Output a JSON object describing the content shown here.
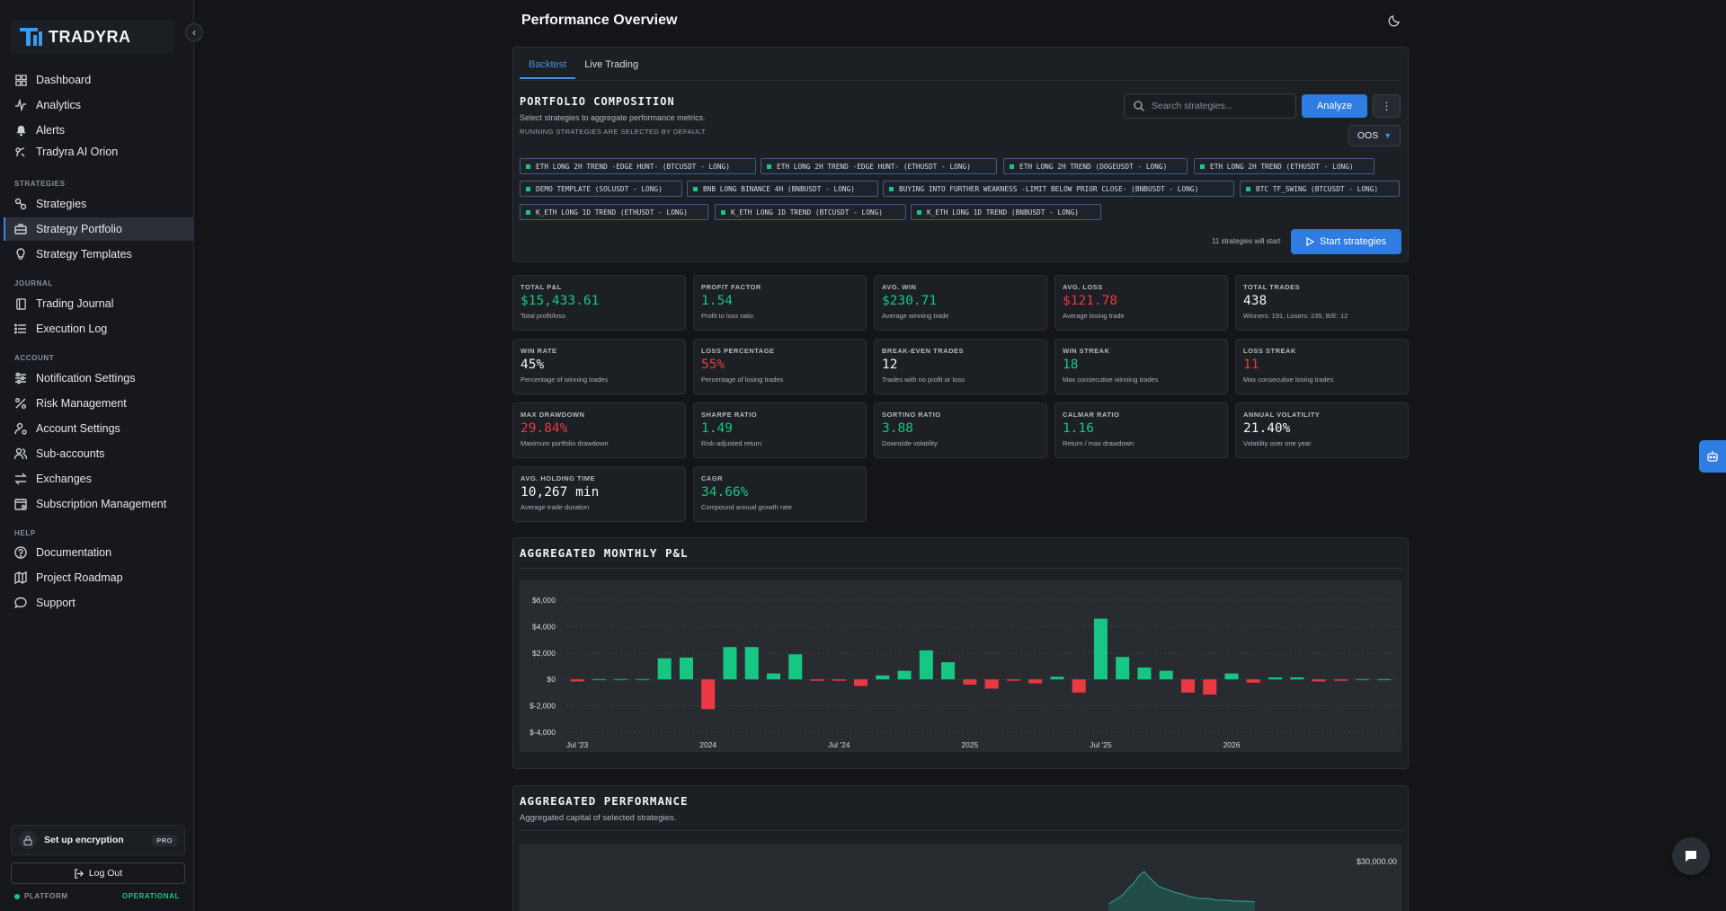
{
  "brand": {
    "name": "TRADYRA"
  },
  "sidebar": {
    "top_items": [
      {
        "label": "Dashboard",
        "icon": "grid-icon"
      },
      {
        "label": "Analytics",
        "icon": "activity-icon"
      },
      {
        "label": "Alerts",
        "icon": "bell-icon"
      },
      {
        "label": "Tradyra AI Orion",
        "icon": "ai-icon"
      }
    ],
    "sections": {
      "strategies": "STRATEGIES",
      "journal": "JOURNAL",
      "account": "ACCOUNT",
      "help": "HELP"
    },
    "strategies_items": [
      {
        "label": "Strategies",
        "icon": "nodes-icon"
      },
      {
        "label": "Strategy Portfolio",
        "icon": "briefcase-icon"
      },
      {
        "label": "Strategy Templates",
        "icon": "lightbulb-icon"
      }
    ],
    "journal_items": [
      {
        "label": "Trading Journal",
        "icon": "book-icon"
      },
      {
        "label": "Execution Log",
        "icon": "list-icon"
      }
    ],
    "account_items": [
      {
        "label": "Notification Settings",
        "icon": "sliders-icon"
      },
      {
        "label": "Risk Management",
        "icon": "percent-icon"
      },
      {
        "label": "Account Settings",
        "icon": "user-gear-icon"
      },
      {
        "label": "Sub-accounts",
        "icon": "users-icon"
      },
      {
        "label": "Exchanges",
        "icon": "swap-icon"
      },
      {
        "label": "Subscription Management",
        "icon": "calendar-icon"
      }
    ],
    "help_items": [
      {
        "label": "Documentation",
        "icon": "help-circle-icon"
      },
      {
        "label": "Project Roadmap",
        "icon": "map-icon"
      },
      {
        "label": "Support",
        "icon": "message-icon"
      }
    ],
    "encryption": {
      "label": "Set up encryption",
      "badge": "PRO"
    },
    "logout": "Log Out",
    "status": {
      "platform": "PLATFORM",
      "state": "OPERATIONAL"
    }
  },
  "header": {
    "title": "Performance Overview"
  },
  "tabs": [
    "Backtest",
    "Live Trading"
  ],
  "composition": {
    "title": "PORTFOLIO COMPOSITION",
    "subtitle": "Select strategies to aggregate performance metrics.",
    "note": "RUNNING STRATEGIES ARE SELECTED BY DEFAULT.",
    "search_placeholder": "Search strategies...",
    "analyze": "Analyze",
    "sample": "OOS",
    "chips": [
      "ETH LONG 2H TREND -EDGE HUNT- (BTCUSDT - LONG)",
      "ETH LONG 2H TREND -EDGE HUNT- (ETHUSDT - LONG)",
      "ETH LONG 2H TREND (DOGEUSDT - LONG)",
      "ETH LONG 2H TREND (ETHUSDT - LONG)",
      "DEMO TEMPLATE (SOLUSDT - LONG)",
      "BNB LONG BINANCE 4H (BNBUSDT - LONG)",
      "BUYING INTO FURTHER WEAKNESS -LIMIT BELOW PRIOR CLOSE- (BNBUSDT - LONG)",
      "BTC TF_SWING (BTCUSDT - LONG)",
      "K_ETH LONG 1D TREND (ETHUSDT - LONG)",
      "K_ETH LONG 1D TREND (BTCUSDT - LONG)",
      "K_ETH LONG 1D TREND (BNBUSDT - LONG)"
    ],
    "will_start": "11 strategies will start",
    "start_button": "Start strategies"
  },
  "metrics": [
    {
      "label": "TOTAL P&L",
      "value": "$15,433.61",
      "desc": "Total profit/loss",
      "tone": "pos"
    },
    {
      "label": "PROFIT FACTOR",
      "value": "1.54",
      "desc": "Profit to loss ratio",
      "tone": "pos"
    },
    {
      "label": "AVG. WIN",
      "value": "$230.71",
      "desc": "Average winning trade",
      "tone": "pos"
    },
    {
      "label": "AVG. LOSS",
      "value": "$121.78",
      "desc": "Average losing trade",
      "tone": "neg"
    },
    {
      "label": "TOTAL TRADES",
      "value": "438",
      "desc": "Winners: 191, Losers: 235, B/E: 12",
      "tone": ""
    },
    {
      "label": "WIN RATE",
      "value": "45%",
      "desc": "Percentage of winning trades",
      "tone": ""
    },
    {
      "label": "LOSS PERCENTAGE",
      "value": "55%",
      "desc": "Percentage of losing trades",
      "tone": "neg"
    },
    {
      "label": "BREAK-EVEN TRADES",
      "value": "12",
      "desc": "Trades with no profit or loss",
      "tone": ""
    },
    {
      "label": "WIN STREAK",
      "value": "18",
      "desc": "Max consecutive winning trades",
      "tone": "pos"
    },
    {
      "label": "LOSS STREAK",
      "value": "11",
      "desc": "Max consecutive losing trades",
      "tone": "neg"
    },
    {
      "label": "MAX DRAWDOWN",
      "value": "29.84%",
      "desc": "Maximum portfolio drawdown",
      "tone": "neg"
    },
    {
      "label": "SHARPE RATIO",
      "value": "1.49",
      "desc": "Risk-adjusted return",
      "tone": "pos"
    },
    {
      "label": "SORTINO RATIO",
      "value": "3.88",
      "desc": "Downside volatility",
      "tone": "pos"
    },
    {
      "label": "CALMAR RATIO",
      "value": "1.16",
      "desc": "Return / max drawdown",
      "tone": "pos"
    },
    {
      "label": "ANNUAL VOLATILITY",
      "value": "21.40%",
      "desc": "Volatility over one year",
      "tone": ""
    },
    {
      "label": "AVG. HOLDING TIME",
      "value": "10,267 min",
      "desc": "Average trade duration",
      "tone": ""
    },
    {
      "label": "CAGR",
      "value": "34.66%",
      "desc": "Compound annual growth rate",
      "tone": "pos"
    }
  ],
  "monthly": {
    "title": "AGGREGATED MONTHLY P&L"
  },
  "performance": {
    "title": "AGGREGATED PERFORMANCE",
    "subtitle": "Aggregated capital of selected strategies.",
    "y_label_top": "$30,000.00"
  },
  "colors": {
    "accent": "#2f7de1",
    "positive": "#16c784",
    "negative": "#ea3943"
  },
  "chart_data": {
    "type": "bar",
    "title": "AGGREGATED MONTHLY P&L",
    "xlabel": "",
    "ylabel": "",
    "ylim": [
      -4000,
      6000
    ],
    "yticks": [
      "$6,000",
      "$4,000",
      "$2,000",
      "$0",
      "$-2,000",
      "$-4,000"
    ],
    "ytick_values": [
      6000,
      4000,
      2000,
      0,
      -2000,
      -4000
    ],
    "xtick_labels": [
      "Jul '23",
      "2024",
      "Jul '24",
      "2025",
      "Jul '25",
      "2026"
    ],
    "xtick_index": [
      0,
      6,
      12,
      18,
      24,
      30
    ],
    "categories": [
      "2023-07",
      "2023-08",
      "2023-09",
      "2023-10",
      "2023-11",
      "2023-12",
      "2024-01",
      "2024-02",
      "2024-03",
      "2024-04",
      "2024-05",
      "2024-06",
      "2024-07",
      "2024-08",
      "2024-09",
      "2024-10",
      "2024-11",
      "2024-12",
      "2025-01",
      "2025-02",
      "2025-03",
      "2025-04",
      "2025-05",
      "2025-06",
      "2025-07",
      "2025-08",
      "2025-09",
      "2025-10",
      "2025-11",
      "2025-12",
      "2026-01",
      "2026-02",
      "2026-03",
      "2026-04",
      "2026-05",
      "2026-06",
      "2026-07",
      "2026-08"
    ],
    "values": [
      -150,
      0,
      0,
      0,
      1600,
      1650,
      -2250,
      2450,
      2450,
      450,
      1900,
      -100,
      -50,
      -500,
      300,
      650,
      2200,
      1300,
      -400,
      -700,
      -50,
      -300,
      200,
      -1000,
      4600,
      1700,
      900,
      650,
      -1000,
      -1150,
      450,
      -250,
      150,
      150,
      -150,
      -100,
      0,
      0
    ]
  }
}
